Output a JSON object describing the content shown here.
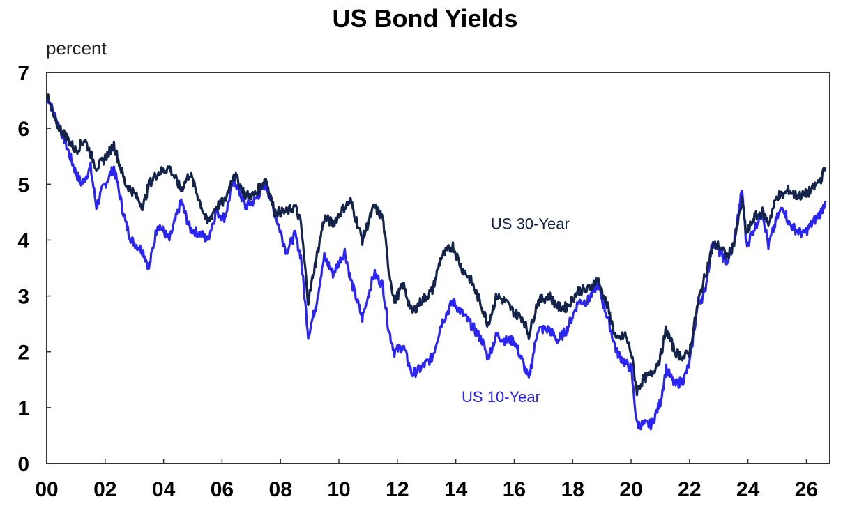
{
  "chart_data": {
    "type": "line",
    "title": "US Bond Yields",
    "ylabel": "percent",
    "xlabel": "",
    "xlim": [
      2000,
      2026.8
    ],
    "ylim": [
      0,
      7
    ],
    "yticks": [
      "0",
      "1",
      "2",
      "3",
      "4",
      "5",
      "6",
      "7"
    ],
    "xticks": [
      "00",
      "02",
      "04",
      "06",
      "08",
      "10",
      "12",
      "14",
      "16",
      "18",
      "20",
      "22",
      "24",
      "26"
    ],
    "grid": false,
    "legend": "none (direct labels)",
    "series": [
      {
        "name": "US 30-Year",
        "color": "#14234a",
        "x": [
          2000.0,
          2000.3,
          2000.6,
          2001.0,
          2001.3,
          2001.7,
          2001.9,
          2002.3,
          2002.7,
          2002.9,
          2003.3,
          2003.5,
          2003.8,
          2004.2,
          2004.6,
          2004.9,
          2005.3,
          2005.5,
          2005.8,
          2006.1,
          2006.4,
          2006.8,
          2007.1,
          2007.5,
          2007.8,
          2008.2,
          2008.5,
          2008.7,
          2008.95,
          2009.2,
          2009.5,
          2009.8,
          2010.2,
          2010.4,
          2010.8,
          2011.2,
          2011.5,
          2011.7,
          2011.9,
          2012.2,
          2012.5,
          2012.8,
          2013.2,
          2013.5,
          2013.9,
          2014.2,
          2014.5,
          2014.9,
          2015.1,
          2015.4,
          2015.7,
          2016.0,
          2016.3,
          2016.5,
          2016.8,
          2017.2,
          2017.5,
          2017.8,
          2018.2,
          2018.5,
          2018.85,
          2019.2,
          2019.5,
          2019.8,
          2020.0,
          2020.2,
          2020.4,
          2020.7,
          2021.0,
          2021.2,
          2021.5,
          2021.8,
          2022.0,
          2022.3,
          2022.5,
          2022.8,
          2023.0,
          2023.3,
          2023.5,
          2023.8,
          2023.95,
          2024.2,
          2024.5,
          2024.7,
          2025.0,
          2025.2,
          2025.4,
          2025.6,
          2025.9,
          2026.2,
          2026.5,
          2026.65
        ],
        "values": [
          6.6,
          6.1,
          5.9,
          5.6,
          5.8,
          5.3,
          5.4,
          5.7,
          5.0,
          4.9,
          4.6,
          5.0,
          5.2,
          5.3,
          4.9,
          5.2,
          4.6,
          4.3,
          4.6,
          4.7,
          5.2,
          4.8,
          4.8,
          5.1,
          4.5,
          4.5,
          4.6,
          4.3,
          2.9,
          3.6,
          4.4,
          4.3,
          4.6,
          4.7,
          4.0,
          4.6,
          4.4,
          3.5,
          2.9,
          3.2,
          2.7,
          2.9,
          3.1,
          3.7,
          3.9,
          3.5,
          3.3,
          2.8,
          2.5,
          3.0,
          2.9,
          2.7,
          2.6,
          2.3,
          2.9,
          3.0,
          2.8,
          2.8,
          3.1,
          3.1,
          3.3,
          2.8,
          2.2,
          2.3,
          2.0,
          1.3,
          1.5,
          1.6,
          1.9,
          2.4,
          2.0,
          1.9,
          2.0,
          2.9,
          3.3,
          3.9,
          3.9,
          3.7,
          3.9,
          4.7,
          4.1,
          4.4,
          4.5,
          4.3,
          4.8,
          4.8,
          4.9,
          4.8,
          4.8,
          4.9,
          5.1,
          5.3
        ]
      },
      {
        "name": "US 10-Year",
        "color": "#2a24f5",
        "x": [
          2000.0,
          2000.3,
          2000.6,
          2001.0,
          2001.2,
          2001.5,
          2001.7,
          2001.9,
          2002.3,
          2002.7,
          2002.9,
          2003.3,
          2003.5,
          2003.8,
          2004.2,
          2004.6,
          2004.9,
          2005.3,
          2005.5,
          2005.8,
          2006.1,
          2006.4,
          2006.8,
          2007.1,
          2007.5,
          2007.8,
          2008.2,
          2008.5,
          2008.7,
          2008.95,
          2009.2,
          2009.5,
          2009.8,
          2010.2,
          2010.4,
          2010.8,
          2011.2,
          2011.5,
          2011.7,
          2011.9,
          2012.2,
          2012.5,
          2012.8,
          2013.2,
          2013.5,
          2013.9,
          2014.2,
          2014.5,
          2014.9,
          2015.1,
          2015.4,
          2015.7,
          2016.0,
          2016.3,
          2016.5,
          2016.8,
          2017.2,
          2017.5,
          2017.8,
          2018.2,
          2018.5,
          2018.85,
          2019.2,
          2019.5,
          2019.8,
          2020.0,
          2020.2,
          2020.4,
          2020.7,
          2021.0,
          2021.2,
          2021.5,
          2021.8,
          2022.0,
          2022.3,
          2022.5,
          2022.8,
          2023.0,
          2023.3,
          2023.5,
          2023.8,
          2023.95,
          2024.2,
          2024.5,
          2024.7,
          2025.0,
          2025.2,
          2025.4,
          2025.6,
          2025.9,
          2026.2,
          2026.5,
          2026.65
        ],
        "values": [
          6.6,
          6.2,
          5.8,
          5.2,
          5.0,
          5.3,
          4.6,
          4.9,
          5.3,
          4.3,
          4.0,
          3.8,
          3.5,
          4.3,
          4.0,
          4.7,
          4.2,
          4.1,
          4.0,
          4.5,
          4.4,
          5.1,
          4.6,
          4.7,
          5.0,
          4.5,
          3.8,
          4.1,
          3.7,
          2.3,
          2.8,
          3.7,
          3.4,
          3.8,
          3.3,
          2.6,
          3.4,
          3.2,
          2.4,
          2.0,
          2.1,
          1.6,
          1.7,
          1.9,
          2.5,
          2.9,
          2.7,
          2.5,
          2.2,
          1.9,
          2.3,
          2.2,
          2.2,
          1.8,
          1.5,
          2.4,
          2.4,
          2.2,
          2.4,
          2.9,
          2.9,
          3.2,
          2.6,
          2.0,
          1.8,
          1.7,
          0.7,
          0.7,
          0.7,
          1.1,
          1.7,
          1.4,
          1.5,
          1.8,
          2.9,
          3.0,
          4.0,
          3.8,
          3.6,
          3.9,
          4.9,
          3.9,
          4.2,
          4.5,
          3.9,
          4.4,
          4.6,
          4.3,
          4.2,
          4.1,
          4.3,
          4.5,
          4.7
        ]
      }
    ],
    "annotations": [
      {
        "text": "US 30-Year",
        "color": "#14234a",
        "x": 2015.2,
        "y": 4.2
      },
      {
        "text": "US 10-Year",
        "color": "#2a24f5",
        "x": 2014.2,
        "y": 1.1
      }
    ]
  }
}
